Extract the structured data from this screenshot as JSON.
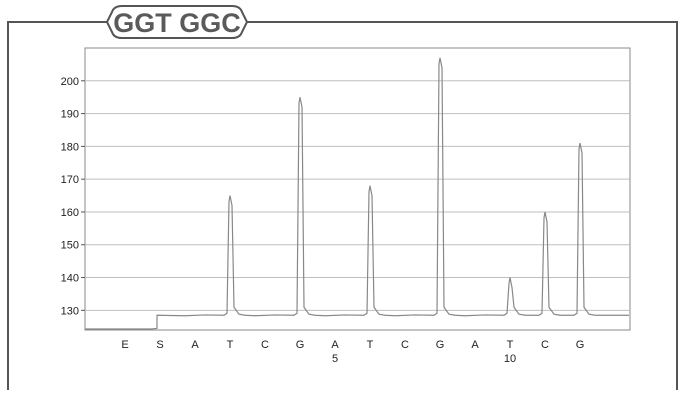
{
  "header": {
    "sequence_tag": "GGT GGC"
  },
  "chart_data": {
    "type": "line",
    "title": "",
    "xlabel": "",
    "ylabel": "",
    "ylim": [
      124,
      210
    ],
    "yticks": [
      130,
      140,
      150,
      160,
      170,
      180,
      190,
      200
    ],
    "grid": true,
    "baseline_before": 124.5,
    "baseline_after": 128.5,
    "dispensations": [
      {
        "base": "E",
        "peak": null,
        "number": ""
      },
      {
        "base": "S",
        "peak": null,
        "number": ""
      },
      {
        "base": "A",
        "peak": null,
        "number": ""
      },
      {
        "base": "T",
        "peak": 165,
        "number": ""
      },
      {
        "base": "C",
        "peak": null,
        "number": ""
      },
      {
        "base": "G",
        "peak": 195,
        "number": ""
      },
      {
        "base": "A",
        "peak": null,
        "number": "5"
      },
      {
        "base": "T",
        "peak": 168,
        "number": ""
      },
      {
        "base": "C",
        "peak": null,
        "number": ""
      },
      {
        "base": "G",
        "peak": 207,
        "number": ""
      },
      {
        "base": "A",
        "peak": null,
        "number": ""
      },
      {
        "base": "T",
        "peak": 140,
        "number": "10"
      },
      {
        "base": "C",
        "peak": 160,
        "number": ""
      },
      {
        "base": "G",
        "peak": 181,
        "number": ""
      }
    ],
    "colors": {
      "trace": "#888888",
      "grid": "#bfbfbf",
      "frame": "#555555",
      "tag_border": "#555555",
      "tag_text": "#5a5a5a"
    }
  }
}
